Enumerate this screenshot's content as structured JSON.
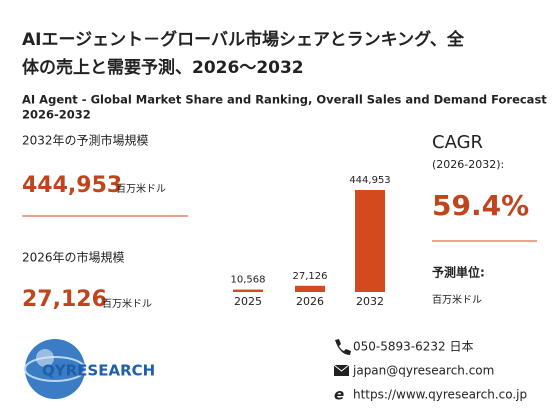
{
  "header": {
    "title_line1": "AIエージェント－グローバル市場シェアとランキング、全",
    "title_line2": "体の売上と需要予測、2026～2032",
    "subtitle_line1": "AI Agent - Global Market Share and Ranking, Overall Sales and Demand Forecast",
    "subtitle_line2": "2026-2032"
  },
  "left": {
    "forecast_label": "2032年の予測市場規模",
    "current_label": "2026年の市場規模",
    "unit": "百万米ドル"
  },
  "chart": {
    "type": "bar",
    "categories": [
      "2025",
      "2026",
      "2032"
    ],
    "values": [
      10568,
      27126,
      444953
    ],
    "value_labels": [
      "10,568",
      "27,126",
      "444,953"
    ],
    "color": "#d34a1e"
  },
  "cagr": {
    "label": "CAGR",
    "period": "(2026-2032):",
    "value": "59.4%",
    "unit_label": "予測単位:",
    "unit": "百万米ドル"
  },
  "logo": {
    "text": "QYRESEARCH"
  },
  "contact": {
    "phone": "050-5893-6232 日本",
    "email": "japan@qyresearch.com",
    "web": "https://www.qyresearch.co.jp"
  }
}
